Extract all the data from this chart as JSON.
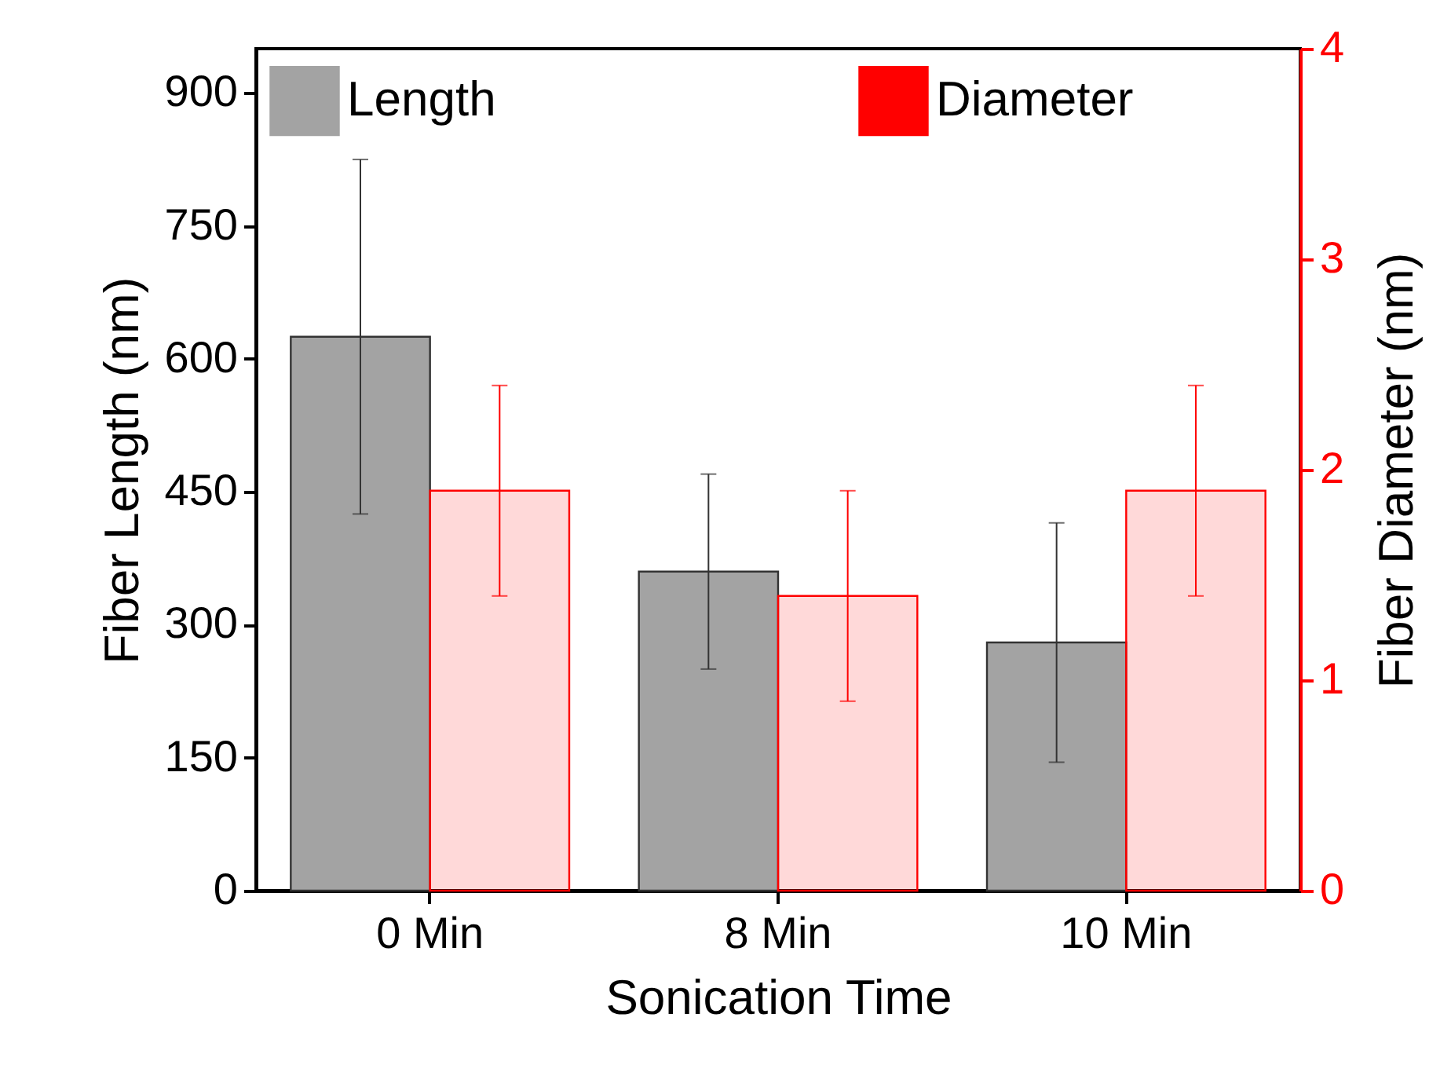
{
  "chart_data": {
    "type": "bar",
    "xlabel": "Sonication Time",
    "ylabel": "Fiber Length (nm)",
    "y2label": "Fiber Diameter (nm)",
    "categories": [
      "0 Min",
      "8 Min",
      "10 Min"
    ],
    "series": [
      {
        "name": "Length",
        "color": "#a3a3a3",
        "values": [
          625,
          360,
          280
        ],
        "errors": [
          200,
          110,
          135
        ]
      },
      {
        "name": "Diameter",
        "color": "#ff0000",
        "axis": "y2",
        "values": [
          1.9,
          1.4,
          1.9
        ],
        "errors": [
          0.5,
          0.5,
          0.5
        ]
      }
    ],
    "ylim": [
      0,
      950
    ],
    "yticks": [
      0,
      150,
      300,
      450,
      600,
      750,
      900
    ],
    "y2lim": [
      0,
      4
    ],
    "y2ticks": [
      0,
      1,
      2,
      3,
      4
    ],
    "legend": "top",
    "grid": false
  }
}
